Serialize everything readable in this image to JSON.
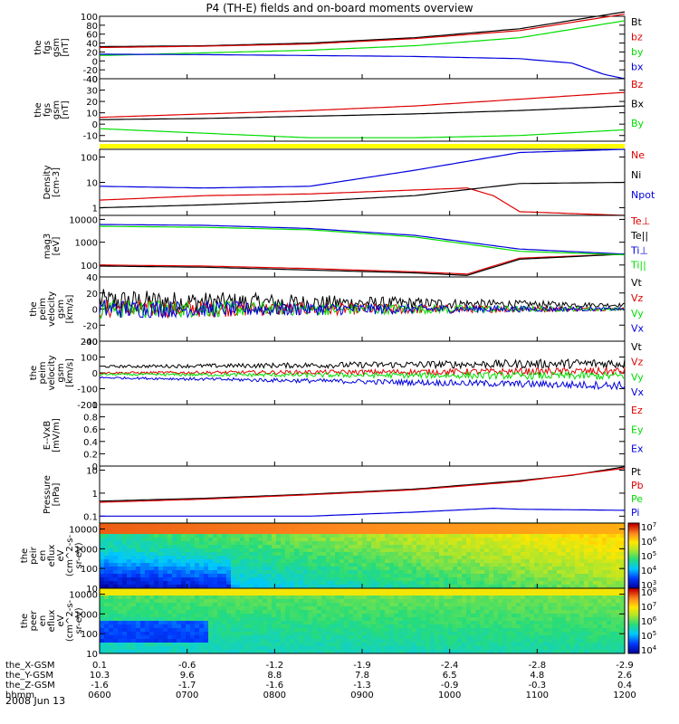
{
  "title": "P4 (TH-E) fields and on-board moments overview",
  "date_label": "2008 Jun 13",
  "colors": {
    "black": "#000000",
    "red": "#dd0000",
    "green": "#00dd00",
    "blue": "#0000dd",
    "yellow": "#ffff00"
  },
  "chart_data": [
    {
      "type": "line",
      "ylabel": [
        "the",
        "fgs",
        "gsm",
        "[nT]"
      ],
      "ylim": [
        -40,
        100
      ],
      "yticks": [
        -40,
        -20,
        0,
        20,
        40,
        60,
        80,
        100
      ],
      "series": [
        {
          "name": "Bt",
          "color": "black",
          "x": [
            0,
            0.2,
            0.4,
            0.6,
            0.8,
            1
          ],
          "y": [
            32,
            34,
            40,
            52,
            72,
            110
          ]
        },
        {
          "name": "bz",
          "color": "red",
          "x": [
            0,
            0.2,
            0.4,
            0.6,
            0.8,
            1
          ],
          "y": [
            30,
            33,
            38,
            50,
            68,
            105
          ]
        },
        {
          "name": "by",
          "color": "green",
          "x": [
            0,
            0.2,
            0.4,
            0.6,
            0.8,
            1
          ],
          "y": [
            12,
            18,
            24,
            34,
            52,
            90
          ]
        },
        {
          "name": "bx",
          "color": "blue",
          "x": [
            0,
            0.2,
            0.4,
            0.6,
            0.8,
            0.9,
            0.96,
            1
          ],
          "y": [
            15,
            14,
            12,
            10,
            5,
            -5,
            -30,
            -40
          ]
        }
      ]
    },
    {
      "type": "line",
      "ylabel": [
        "the",
        "fgs",
        "gsm",
        "[nT]"
      ],
      "ylim": [
        -15,
        40
      ],
      "yticks": [
        -10,
        0,
        10,
        20,
        30,
        40
      ],
      "series": [
        {
          "name": "Bz",
          "color": "red",
          "x": [
            0,
            0.2,
            0.4,
            0.6,
            0.8,
            1
          ],
          "y": [
            6,
            9,
            12,
            16,
            22,
            28
          ]
        },
        {
          "name": "Bx",
          "color": "black",
          "x": [
            0,
            0.2,
            0.4,
            0.6,
            0.8,
            1
          ],
          "y": [
            4,
            5,
            7,
            9,
            12,
            16
          ]
        },
        {
          "name": "By",
          "color": "green",
          "x": [
            0,
            0.2,
            0.4,
            0.6,
            0.8,
            1
          ],
          "y": [
            -4,
            -8,
            -12,
            -12,
            -10,
            -5
          ]
        }
      ]
    },
    {
      "type": "line",
      "scale": "log",
      "ylabel": [
        "Density",
        "[cm-3]"
      ],
      "ylim": [
        0.5,
        200
      ],
      "yticks": [
        1,
        10,
        100
      ],
      "series": [
        {
          "name": "Ne",
          "color": "red",
          "x": [
            0,
            0.2,
            0.4,
            0.6,
            0.7,
            0.75,
            0.8,
            1
          ],
          "y": [
            2,
            3,
            3.5,
            5,
            6,
            3,
            0.7,
            0.5
          ]
        },
        {
          "name": "Ni",
          "color": "black",
          "x": [
            0,
            0.2,
            0.4,
            0.6,
            0.8,
            1
          ],
          "y": [
            1,
            1.3,
            1.8,
            3,
            9,
            10
          ]
        },
        {
          "name": "Npot",
          "color": "blue",
          "x": [
            0,
            0.2,
            0.4,
            0.6,
            0.8,
            1
          ],
          "y": [
            7,
            6,
            7,
            30,
            150,
            200
          ]
        }
      ]
    },
    {
      "type": "line",
      "scale": "log",
      "ylabel": [
        "mag3",
        "[eV]"
      ],
      "ylim": [
        30,
        15000
      ],
      "yticks": [
        100,
        1000,
        10000
      ],
      "series": [
        {
          "name": "Te⊥",
          "color": "red",
          "x": [
            0,
            0.2,
            0.4,
            0.6,
            0.7,
            0.8,
            1
          ],
          "y": [
            100,
            90,
            70,
            50,
            40,
            200,
            300
          ]
        },
        {
          "name": "Te||",
          "color": "black",
          "x": [
            0,
            0.2,
            0.4,
            0.6,
            0.7,
            0.8,
            1
          ],
          "y": [
            90,
            80,
            60,
            45,
            35,
            180,
            300
          ]
        },
        {
          "name": "Ti⊥",
          "color": "blue",
          "x": [
            0,
            0.2,
            0.4,
            0.6,
            0.8,
            1
          ],
          "y": [
            6000,
            5500,
            4000,
            2000,
            500,
            300
          ]
        },
        {
          "name": "Ti||",
          "color": "green",
          "x": [
            0,
            0.2,
            0.4,
            0.6,
            0.8,
            1
          ],
          "y": [
            5000,
            4500,
            3500,
            1700,
            400,
            280
          ]
        }
      ]
    },
    {
      "type": "line",
      "ylabel": [
        "the",
        "peim",
        "velocity",
        "gsm",
        "[km/s]"
      ],
      "ylim": [
        -40,
        40
      ],
      "yticks": [
        -40,
        -20,
        0,
        20,
        40
      ],
      "series": [
        {
          "name": "Vt",
          "color": "black",
          "x": [
            0,
            1
          ],
          "y": [
            10,
            5
          ]
        },
        {
          "name": "Vz",
          "color": "red",
          "x": [
            0,
            1
          ],
          "y": [
            0,
            0
          ]
        },
        {
          "name": "Vy",
          "color": "green",
          "x": [
            0,
            1
          ],
          "y": [
            0,
            0
          ]
        },
        {
          "name": "Vx",
          "color": "blue",
          "x": [
            0,
            1
          ],
          "y": [
            0,
            0
          ]
        }
      ]
    },
    {
      "type": "line",
      "ylabel": [
        "the",
        "peim",
        "velocity",
        "gsm",
        "[km/s]"
      ],
      "ylim": [
        -200,
        200
      ],
      "yticks": [
        -200,
        -100,
        0,
        100,
        200
      ],
      "series": [
        {
          "name": "Vt",
          "color": "black",
          "x": [
            0,
            1
          ],
          "y": [
            40,
            60
          ]
        },
        {
          "name": "Vz",
          "color": "red",
          "x": [
            0,
            1
          ],
          "y": [
            0,
            10
          ]
        },
        {
          "name": "Vy",
          "color": "green",
          "x": [
            0,
            1
          ],
          "y": [
            -10,
            -20
          ]
        },
        {
          "name": "Vx",
          "color": "blue",
          "x": [
            0,
            1
          ],
          "y": [
            -30,
            -80
          ]
        }
      ]
    },
    {
      "type": "line",
      "ylabel": [
        "E--VxB",
        "[mV/m]"
      ],
      "ylim": [
        0,
        1
      ],
      "yticks": [
        0,
        0.2,
        0.4,
        0.6,
        0.8,
        1.0
      ],
      "series": [
        {
          "name": "Ez",
          "color": "red",
          "x": [],
          "y": []
        },
        {
          "name": "Ey",
          "color": "green",
          "x": [],
          "y": []
        },
        {
          "name": "Ex",
          "color": "blue",
          "x": [],
          "y": []
        }
      ]
    },
    {
      "type": "line",
      "scale": "log",
      "ylabel": [
        "Pressure",
        "[nPa]"
      ],
      "ylim": [
        0.05,
        15
      ],
      "yticks": [
        0.1,
        1.0,
        10.0
      ],
      "series": [
        {
          "name": "Pt",
          "color": "black",
          "x": [
            0,
            0.2,
            0.4,
            0.6,
            0.8,
            0.9,
            1
          ],
          "y": [
            0.45,
            0.6,
            0.9,
            1.5,
            3.5,
            6,
            14
          ]
        },
        {
          "name": "Pb",
          "color": "red",
          "x": [
            0,
            0.2,
            0.4,
            0.6,
            0.8,
            1
          ],
          "y": [
            0.4,
            0.55,
            0.85,
            1.4,
            3.2,
            12
          ]
        },
        {
          "name": "Pe",
          "color": "green",
          "x": [
            0,
            0.5,
            1
          ],
          "y": [
            0.03,
            0.03,
            0.03
          ]
        },
        {
          "name": "Pi",
          "color": "blue",
          "x": [
            0,
            0.2,
            0.4,
            0.6,
            0.75,
            0.8,
            1
          ],
          "y": [
            0.1,
            0.1,
            0.1,
            0.15,
            0.22,
            0.2,
            0.18
          ]
        }
      ]
    },
    {
      "type": "heatmap",
      "ylabel": [
        "the",
        "peir",
        "en",
        "eflux",
        "eV",
        "(cm^2-s-",
        "sr-eV)"
      ],
      "scale": "log",
      "ylim": [
        10,
        20000
      ],
      "yticks": [
        10,
        100,
        1000,
        10000
      ],
      "colorbar": [
        "10^3",
        "10^4",
        "10^5",
        "10^6",
        "10^7"
      ]
    },
    {
      "type": "heatmap",
      "ylabel": [
        "the",
        "peer",
        "en",
        "eflux",
        "eV",
        "(cm^2-s-",
        "sr-eV)"
      ],
      "scale": "log",
      "ylim": [
        10,
        20000
      ],
      "yticks": [
        10,
        100,
        1000,
        10000
      ],
      "colorbar": [
        "10^4",
        "10^5",
        "10^6",
        "10^7",
        "10^8"
      ]
    }
  ],
  "x_axis": {
    "rows": [
      {
        "label": "the_X-GSM",
        "values": [
          "0.1",
          "-0.6",
          "-1.2",
          "-1.9",
          "-2.4",
          "-2.8",
          "-2.9"
        ]
      },
      {
        "label": "the_Y-GSM",
        "values": [
          "10.3",
          "9.6",
          "8.8",
          "7.8",
          "6.5",
          "4.8",
          "2.6"
        ]
      },
      {
        "label": "the_Z-GSM",
        "values": [
          "-1.6",
          "-1.7",
          "-1.6",
          "-1.3",
          "-0.9",
          "-0.3",
          "0.4"
        ]
      },
      {
        "label": "hhmm",
        "values": [
          "0600",
          "0700",
          "0800",
          "0900",
          "1000",
          "1100",
          "1200"
        ]
      }
    ]
  }
}
